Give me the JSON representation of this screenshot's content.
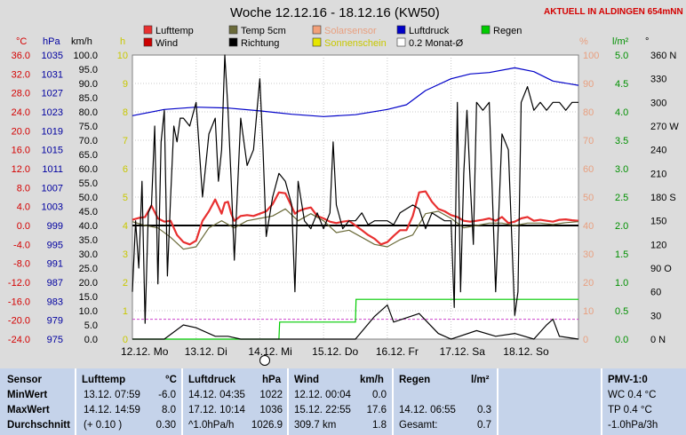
{
  "header": {
    "title": "Woche 12.12.16 - 18.12.16 (KW50)",
    "station_label": "AKTUELL IN ALDINGEN 654mNN"
  },
  "colors": {
    "plot_bg": "#ffffff",
    "page_bg": "#dcdcdc",
    "lufttemp": "#e83030",
    "temp5cm": "#6b6b3a",
    "solar": "#f2a07a",
    "luftdruck": "#0000c8",
    "wind": "#000000",
    "regen": "#00cc00",
    "monat": "#cc44cc",
    "axis_temp": "#d40000",
    "axis_hpa": "#0000a0",
    "axis_h": "#c8c800",
    "axis_pct": "#e8a080",
    "axis_rain": "#009000",
    "table_bg": "#c5d3ea"
  },
  "chart_data": {
    "type": "line",
    "title": "Woche 12.12.16 - 18.12.16 (KW50)",
    "legend": [
      {
        "label": "Lufttemp",
        "color": "#e83030"
      },
      {
        "label": "Temp 5cm",
        "color": "#6b6b3a"
      },
      {
        "label": "Solarsensor",
        "color": "#f2a07a"
      },
      {
        "label": "Luftdruck",
        "color": "#0000c8"
      },
      {
        "label": "Regen",
        "color": "#00cc00"
      },
      {
        "label": "Wind",
        "color": "#cc0000"
      },
      {
        "label": "Richtung",
        "color": "#000000"
      },
      {
        "label": "Sonnenschein",
        "color": "#e6e600"
      },
      {
        "label": "0.2 Monat-Ø",
        "color": "#ffffff"
      }
    ],
    "axis_units": {
      "temp": "°C",
      "hpa": "hPa",
      "wind": "km/h",
      "sun": "h",
      "pct": "%",
      "rain": "l/m²",
      "dir": "°"
    },
    "x_ticks": [
      "12.12. Mo",
      "13.12. Di",
      "14.12. Mi",
      "15.12. Do",
      "16.12. Fr",
      "17.12. Sa",
      "18.12. So"
    ],
    "x_range_days": [
      0,
      7
    ],
    "axes": {
      "temp": {
        "min": -24.0,
        "max": 36.0,
        "ticks": [
          "36.0",
          "32.0",
          "28.0",
          "24.0",
          "20.0",
          "16.0",
          "12.0",
          "8.0",
          "4.0",
          "0.0",
          "-4.0",
          "-8.0",
          "-12.0",
          "-16.0",
          "-20.0",
          "-24.0"
        ]
      },
      "hpa": {
        "min": 975,
        "max": 1035,
        "ticks": [
          "1035",
          "1031",
          "1027",
          "1023",
          "1019",
          "1015",
          "1011",
          "1007",
          "1003",
          "999",
          "995",
          "991",
          "987",
          "983",
          "979",
          "975"
        ]
      },
      "wind": {
        "min": 0,
        "max": 100,
        "ticks": [
          "100.0",
          "95.0",
          "90.0",
          "85.0",
          "80.0",
          "75.0",
          "70.0",
          "65.0",
          "60.0",
          "55.0",
          "50.0",
          "45.0",
          "40.0",
          "35.0",
          "30.0",
          "25.0",
          "20.0",
          "15.0",
          "10.0",
          "5.0",
          "0.0"
        ]
      },
      "sun": {
        "min": 0,
        "max": 10,
        "ticks": [
          "10",
          "9",
          "8",
          "7",
          "6",
          "5",
          "4",
          "3",
          "2",
          "1",
          "0"
        ]
      },
      "pct": {
        "min": 0,
        "max": 100,
        "ticks": [
          "100",
          "90",
          "80",
          "70",
          "60",
          "50",
          "40",
          "30",
          "20",
          "10",
          "0"
        ]
      },
      "rain": {
        "min": 0,
        "max": 5,
        "ticks": [
          "5.0",
          "4.5",
          "4.0",
          "3.5",
          "3.0",
          "2.5",
          "2.0",
          "1.5",
          "1.0",
          "0.5",
          "0.0"
        ]
      },
      "dir": {
        "min": 0,
        "max": 360,
        "ticks": [
          "360 N",
          "330",
          "300",
          "270 W",
          "240",
          "210",
          "180 S",
          "150",
          "120",
          "90 O",
          "60",
          "30",
          "0 N"
        ]
      }
    },
    "series": [
      {
        "name": "Lufttemp",
        "axis": "temp",
        "color": "#e83030",
        "x": [
          0,
          0.1,
          0.2,
          0.3,
          0.4,
          0.5,
          0.6,
          0.7,
          0.8,
          0.9,
          1.0,
          1.1,
          1.2,
          1.3,
          1.35,
          1.4,
          1.45,
          1.5,
          1.55,
          1.6,
          1.7,
          1.8,
          1.9,
          2.0,
          2.1,
          2.2,
          2.3,
          2.4,
          2.5,
          2.55,
          2.6,
          2.7,
          2.8,
          2.9,
          3.0,
          3.1,
          3.2,
          3.3,
          3.4,
          3.5,
          3.6,
          3.7,
          3.8,
          3.9,
          4.0,
          4.1,
          4.2,
          4.3,
          4.4,
          4.5,
          4.6,
          4.7,
          4.8,
          4.9,
          5.0,
          5.1,
          5.2,
          5.3,
          5.4,
          5.5,
          5.6,
          5.7,
          5.8,
          5.9,
          6.0,
          6.1,
          6.2,
          6.3,
          6.4,
          6.5,
          6.6,
          6.7,
          6.8,
          6.9,
          7.0
        ],
        "values": [
          1.2,
          1.6,
          1.8,
          4.2,
          1.5,
          0.8,
          1.0,
          -2.0,
          -3.5,
          -4.0,
          -3.2,
          1.0,
          3.0,
          5.5,
          4.0,
          2.5,
          4.8,
          5.0,
          2.5,
          1.0,
          2.0,
          2.2,
          2.0,
          2.5,
          3.0,
          4.5,
          7.0,
          6.8,
          4.0,
          2.5,
          3.0,
          3.5,
          3.8,
          2.0,
          1.5,
          0.8,
          0.5,
          0.8,
          1.0,
          0.0,
          -1.0,
          -2.0,
          -2.8,
          -4.0,
          -3.5,
          -2.2,
          -1.0,
          -1.0,
          2.0,
          7.0,
          7.2,
          5.0,
          3.5,
          3.0,
          2.2,
          1.8,
          1.0,
          0.8,
          1.0,
          1.2,
          1.5,
          1.0,
          1.8,
          0.5,
          0.8,
          1.5,
          1.8,
          1.0,
          1.2,
          1.0,
          0.8,
          1.2,
          1.3,
          1.1,
          1.0
        ]
      },
      {
        "name": "Temp 5cm",
        "axis": "temp",
        "color": "#6b6b3a",
        "x": [
          0,
          0.2,
          0.4,
          0.6,
          0.8,
          1.0,
          1.2,
          1.4,
          1.6,
          1.8,
          2.0,
          2.2,
          2.4,
          2.6,
          2.8,
          3.0,
          3.2,
          3.4,
          3.6,
          3.8,
          4.0,
          4.2,
          4.4,
          4.6,
          4.8,
          5.0,
          5.2,
          5.4,
          5.6,
          5.8,
          6.0,
          6.2,
          6.4,
          6.6,
          6.8,
          7.0
        ],
        "values": [
          0.8,
          0.0,
          -0.5,
          -2.5,
          -5.0,
          -4.5,
          -0.5,
          1.0,
          -0.5,
          1.0,
          1.5,
          2.0,
          3.5,
          1.0,
          2.5,
          1.0,
          -1.5,
          -1.0,
          -2.5,
          -4.0,
          -4.5,
          -3.0,
          -2.0,
          2.5,
          3.0,
          1.5,
          -0.5,
          0.0,
          0.5,
          0.5,
          0.0,
          0.5,
          0.5,
          0.2,
          0.6,
          0.8
        ]
      },
      {
        "name": "Luftdruck",
        "axis": "hpa",
        "color": "#0000c8",
        "x": [
          0,
          0.5,
          1.0,
          1.5,
          2.0,
          2.5,
          3.0,
          3.5,
          4.0,
          4.3,
          4.6,
          5.0,
          5.3,
          5.6,
          6.0,
          6.3,
          6.6,
          7.0
        ],
        "values": [
          1022.2,
          1023.5,
          1024.0,
          1023.8,
          1023.2,
          1022.5,
          1022.0,
          1022.4,
          1023.5,
          1024.5,
          1027.5,
          1030.0,
          1031.0,
          1031.3,
          1032.3,
          1031.5,
          1029.5,
          1028.6
        ]
      },
      {
        "name": "Richtung",
        "axis": "dir",
        "color": "#000000",
        "x": [
          0,
          0.05,
          0.1,
          0.15,
          0.2,
          0.25,
          0.3,
          0.35,
          0.4,
          0.45,
          0.5,
          0.55,
          0.6,
          0.65,
          0.7,
          0.75,
          0.8,
          0.9,
          1.0,
          1.1,
          1.2,
          1.3,
          1.35,
          1.4,
          1.45,
          1.5,
          1.55,
          1.6,
          1.7,
          1.8,
          1.9,
          2.0,
          2.05,
          2.1,
          2.2,
          2.3,
          2.4,
          2.5,
          2.55,
          2.6,
          2.7,
          2.8,
          2.9,
          3.0,
          3.05,
          3.1,
          3.15,
          3.2,
          3.3,
          3.4,
          3.5,
          3.6,
          3.7,
          3.8,
          3.9,
          4.0,
          4.1,
          4.2,
          4.3,
          4.4,
          4.5,
          4.6,
          4.7,
          4.8,
          4.9,
          5.0,
          5.05,
          5.1,
          5.15,
          5.2,
          5.25,
          5.3,
          5.35,
          5.4,
          5.5,
          5.6,
          5.7,
          5.8,
          5.9,
          6.0,
          6.05,
          6.1,
          6.2,
          6.3,
          6.4,
          6.5,
          6.6,
          6.7,
          6.8,
          6.9,
          7.0
        ],
        "values": [
          60,
          150,
          90,
          200,
          20,
          160,
          170,
          270,
          70,
          250,
          290,
          80,
          180,
          270,
          250,
          280,
          280,
          270,
          300,
          180,
          260,
          280,
          200,
          240,
          360,
          290,
          200,
          100,
          280,
          220,
          240,
          330,
          240,
          130,
          180,
          210,
          200,
          170,
          60,
          200,
          150,
          140,
          160,
          140,
          150,
          160,
          250,
          170,
          140,
          150,
          150,
          160,
          145,
          150,
          150,
          150,
          145,
          160,
          165,
          170,
          165,
          140,
          160,
          155,
          150,
          150,
          40,
          300,
          60,
          210,
          290,
          200,
          120,
          300,
          290,
          300,
          60,
          260,
          240,
          30,
          60,
          300,
          320,
          290,
          300,
          290,
          300,
          300,
          290,
          300,
          300
        ]
      }
    ],
    "wind_points": {
      "x": [
        0,
        0.5,
        0.8,
        1.0,
        1.3,
        1.5,
        1.7,
        2.0,
        2.5,
        3.0,
        3.2,
        3.5,
        3.8,
        4.0,
        4.1,
        4.5,
        4.8,
        5.0,
        5.4,
        5.7,
        6.0,
        6.3,
        6.5,
        6.6,
        6.7,
        7.0
      ],
      "values": [
        0,
        0,
        5,
        4,
        1,
        1,
        0,
        0,
        0,
        0,
        0,
        0,
        8,
        12,
        6,
        9,
        2,
        0,
        3,
        1,
        2,
        0,
        5,
        7,
        1,
        0
      ]
    },
    "regen_points": {
      "x": [
        0,
        2.2,
        2.3,
        2.31,
        3.5,
        3.51,
        7.0
      ],
      "values": [
        0,
        0,
        0,
        0.3,
        0.3,
        0.7,
        0.7
      ]
    },
    "monthly_avg_line": {
      "axis": "wind",
      "value": 7
    }
  },
  "table": {
    "col1": {
      "header": "Sensor",
      "rows": [
        "MinWert",
        "MaxWert",
        "Durchschnitt"
      ]
    },
    "col2": {
      "header": "Lufttemp",
      "unit": "°C",
      "rows": [
        [
          "13.12.  07:59",
          "-6.0"
        ],
        [
          "14.12.  14:59",
          "8.0"
        ],
        [
          "(+ 0.10 )",
          "0.30"
        ]
      ]
    },
    "col3": {
      "header": "Luftdruck",
      "unit": "hPa",
      "rows": [
        [
          "14.12.  04:35",
          "1022"
        ],
        [
          "17.12.  10:14",
          "1036"
        ],
        [
          "^1.0hPa/h",
          "1026.9"
        ]
      ]
    },
    "col4": {
      "header": "Wind",
      "unit": "km/h",
      "rows": [
        [
          "12.12.  00:04",
          "0.0"
        ],
        [
          "15.12.  22:55",
          "17.6"
        ],
        [
          "309.7 km",
          "1.8"
        ]
      ]
    },
    "col5": {
      "header": "Regen",
      "unit": "l/m²",
      "rows": [
        [
          "",
          ""
        ],
        [
          "14.12.  06:55",
          "0.3"
        ],
        [
          "Gesamt:",
          "0.7"
        ]
      ]
    },
    "col6": {
      "header": "PMV-1:0",
      "rows": [
        "WC 0.4 °C",
        "TP 0.4 °C",
        "-1.0hPa/3h"
      ]
    }
  }
}
